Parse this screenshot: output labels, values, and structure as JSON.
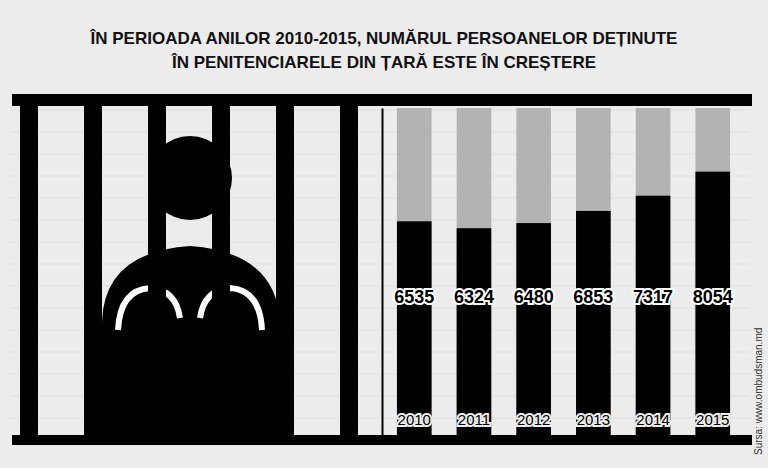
{
  "chart_data": {
    "type": "bar",
    "title": "ÎN PERIOADA ANILOR 2010-2015, NUMĂRUL PERSOANELOR DEȚINUTE\nÎN PENITENCIARELE DIN ȚARĂ ESTE ÎN CREȘTERE",
    "categories": [
      "2010",
      "2011",
      "2012",
      "2013",
      "2014",
      "2015"
    ],
    "values": [
      6535,
      6324,
      6480,
      6853,
      7317,
      8054
    ],
    "color": "#000000",
    "ylim": [
      0,
      10000
    ],
    "yticks": [],
    "tick_labels": "x",
    "data_labels": true,
    "source": "Sursa: www.ombudsman.md"
  }
}
